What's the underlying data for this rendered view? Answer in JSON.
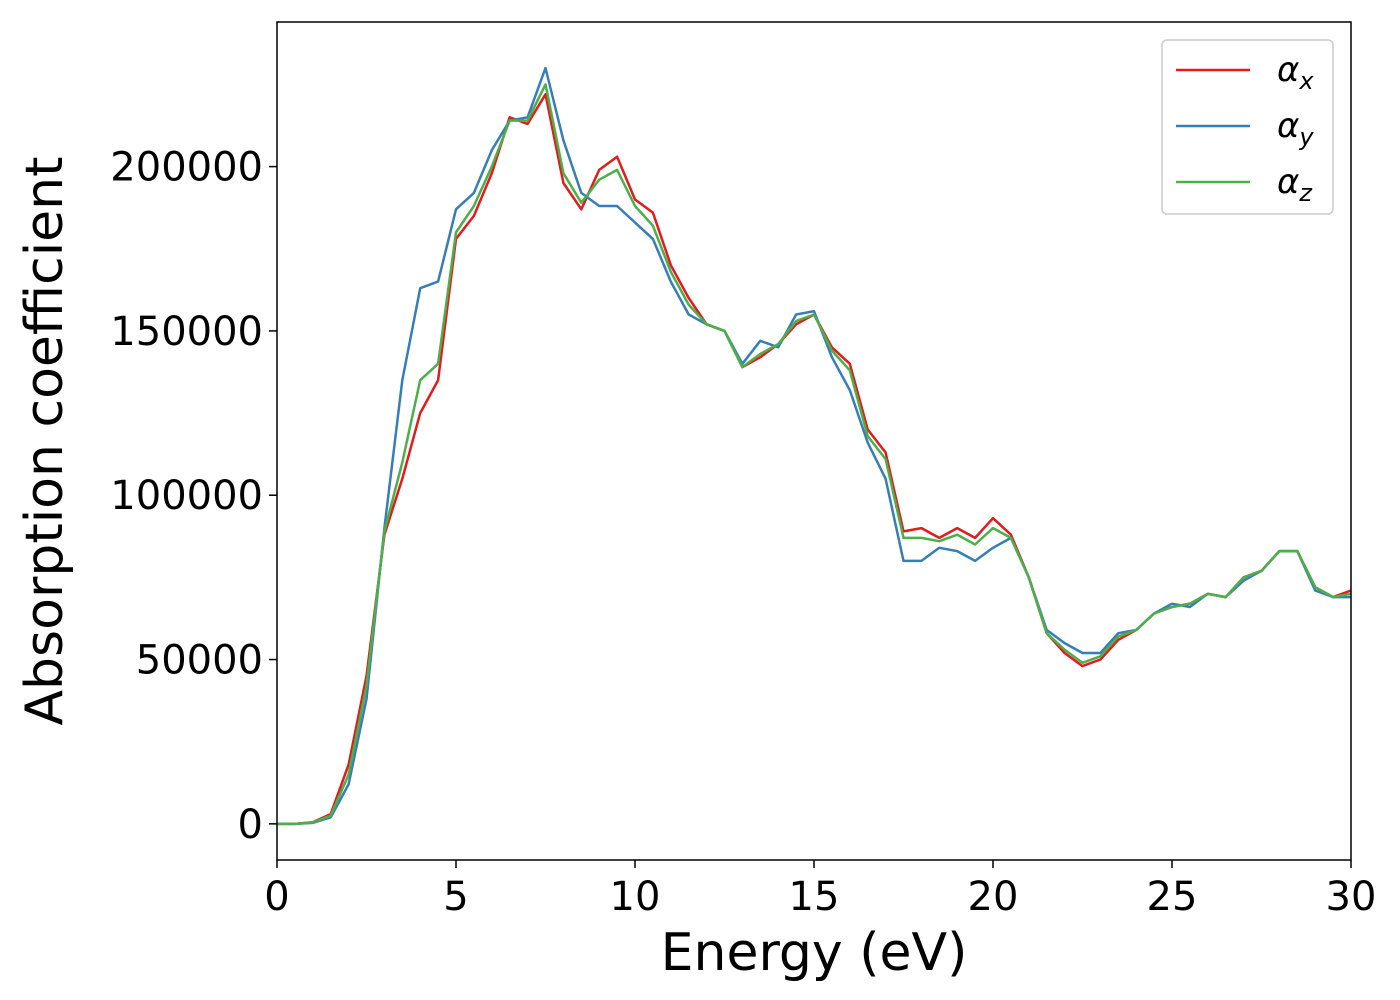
{
  "chart_data": {
    "type": "line",
    "xlabel": "Energy (eV)",
    "ylabel": "Absorption coefficient",
    "x": [
      0,
      0.5,
      1,
      1.5,
      2,
      2.5,
      3,
      3.5,
      4,
      4.5,
      5,
      5.5,
      6,
      6.5,
      7,
      7.5,
      8,
      8.5,
      9,
      9.5,
      10,
      10.5,
      11,
      11.5,
      12,
      12.5,
      13,
      13.5,
      14,
      14.5,
      15,
      15.5,
      16,
      16.5,
      17,
      17.5,
      18,
      18.5,
      19,
      19.5,
      20,
      20.5,
      21,
      21.5,
      22,
      22.5,
      23,
      23.5,
      24,
      24.5,
      25,
      25.5,
      26,
      26.5,
      27,
      27.5,
      28,
      28.5,
      29,
      29.5,
      30
    ],
    "series": [
      {
        "name": "αx",
        "color": "#e41a1c",
        "values": [
          0,
          0,
          500,
          3000,
          18000,
          45000,
          88000,
          105000,
          125000,
          135000,
          178000,
          185000,
          198000,
          215000,
          213000,
          222000,
          195000,
          187000,
          199000,
          203000,
          190000,
          186000,
          170000,
          160000,
          152000,
          150000,
          139000,
          142000,
          146000,
          152000,
          155000,
          145000,
          140000,
          120000,
          113000,
          89000,
          90000,
          87000,
          90000,
          87000,
          93000,
          88000,
          75000,
          58000,
          52000,
          48000,
          50000,
          56000,
          59000,
          64000,
          66000,
          67000,
          70000,
          69000,
          75000,
          77000,
          83000,
          83000,
          72000,
          69000,
          71000
        ]
      },
      {
        "name": "αy",
        "color": "#377eb8",
        "values": [
          0,
          0,
          300,
          2000,
          12000,
          38000,
          90000,
          135000,
          163000,
          165000,
          187000,
          192000,
          205000,
          214000,
          215000,
          230000,
          208000,
          192000,
          188000,
          188000,
          183000,
          178000,
          165000,
          155000,
          152000,
          150000,
          140000,
          147000,
          145000,
          155000,
          156000,
          142000,
          132000,
          116000,
          105000,
          80000,
          80000,
          84000,
          83000,
          80000,
          84000,
          87000,
          75000,
          59000,
          55000,
          52000,
          52000,
          58000,
          59000,
          64000,
          67000,
          66000,
          70000,
          69000,
          74000,
          77000,
          83000,
          83000,
          71000,
          69000,
          69000
        ]
      },
      {
        "name": "αz",
        "color": "#4daf4a",
        "values": [
          0,
          0,
          400,
          2500,
          15000,
          42000,
          89000,
          110000,
          135000,
          140000,
          180000,
          188000,
          200000,
          214000,
          214000,
          225000,
          198000,
          189000,
          196000,
          199000,
          188000,
          182000,
          168000,
          158000,
          152000,
          150000,
          139000,
          143000,
          146000,
          153000,
          155000,
          144000,
          138000,
          118000,
          111000,
          87000,
          87000,
          86000,
          88000,
          85000,
          90000,
          87000,
          75000,
          58000,
          53000,
          49000,
          51000,
          57000,
          59000,
          64000,
          66000,
          67000,
          70000,
          69000,
          75000,
          77000,
          83000,
          83000,
          72000,
          69000,
          70000
        ]
      }
    ],
    "xlim": [
      0,
      30
    ],
    "xticks": [
      0,
      5,
      10,
      15,
      20,
      25,
      30
    ],
    "ylim": [
      -11000,
      244000
    ],
    "yticks": [
      0,
      50000,
      100000,
      150000,
      200000
    ],
    "legend": "upper right"
  }
}
